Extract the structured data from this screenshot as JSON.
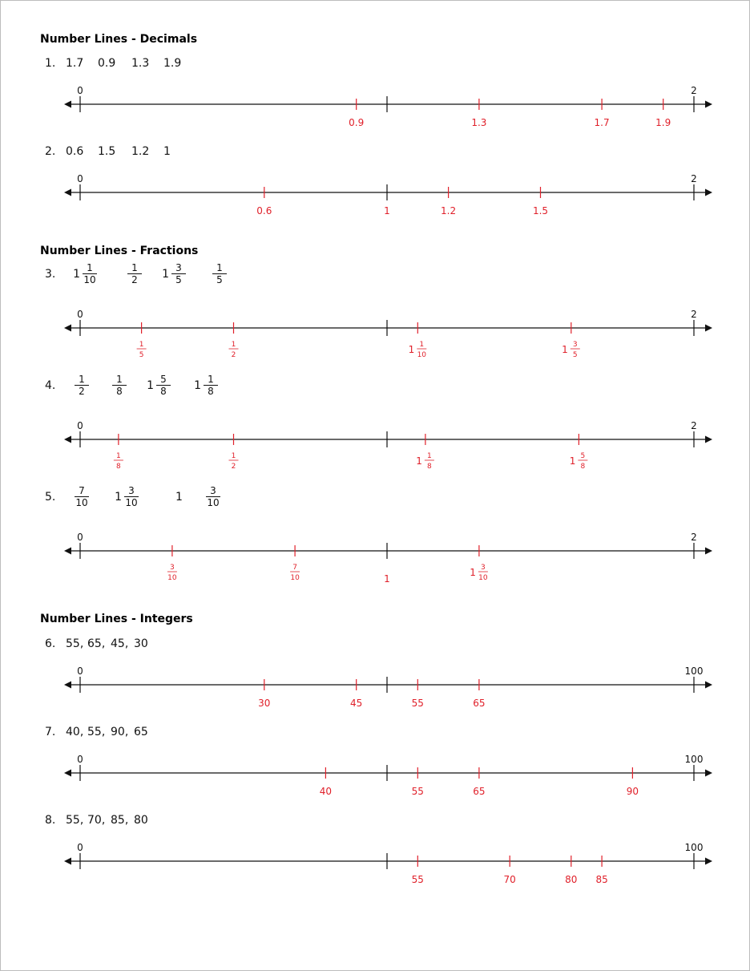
{
  "sections": [
    {
      "title": "Number Lines - Decimals",
      "problems": [
        {
          "num": "1.",
          "items": [
            {
              "text": "1.7"
            },
            {
              "text": "0.9"
            },
            {
              "text": "1.3"
            },
            {
              "text": "1.9"
            }
          ],
          "min": 0,
          "max": 2,
          "min_label": "0",
          "max_label": "2",
          "answers": [
            {
              "value": 0.9,
              "label": "0.9"
            },
            {
              "value": 1.3,
              "label": "1.3"
            },
            {
              "value": 1.7,
              "label": "1.7"
            },
            {
              "value": 1.9,
              "label": "1.9"
            }
          ]
        },
        {
          "num": "2.",
          "items": [
            {
              "text": "0.6"
            },
            {
              "text": "1.5"
            },
            {
              "text": "1.2"
            },
            {
              "text": "1"
            }
          ],
          "min": 0,
          "max": 2,
          "min_label": "0",
          "max_label": "2",
          "answers": [
            {
              "value": 0.6,
              "label": "0.6"
            },
            {
              "value": 1,
              "label": "1"
            },
            {
              "value": 1.2,
              "label": "1.2"
            },
            {
              "value": 1.5,
              "label": "1.5"
            }
          ]
        }
      ]
    },
    {
      "title": "Number Lines - Fractions",
      "problems": [
        {
          "num": "3.",
          "items": [
            {
              "whole": "1",
              "num": "1",
              "den": "10"
            },
            {
              "num": "1",
              "den": "2"
            },
            {
              "whole": "1",
              "num": "3",
              "den": "5"
            },
            {
              "num": "1",
              "den": "5"
            }
          ],
          "min": 0,
          "max": 2,
          "min_label": "0",
          "max_label": "2",
          "answers": [
            {
              "value": 0.2,
              "num": "1",
              "den": "5"
            },
            {
              "value": 0.5,
              "num": "1",
              "den": "2"
            },
            {
              "value": 1.1,
              "whole": "1",
              "num": "1",
              "den": "10"
            },
            {
              "value": 1.6,
              "whole": "1",
              "num": "3",
              "den": "5"
            }
          ]
        },
        {
          "num": "4.",
          "items": [
            {
              "num": "1",
              "den": "2"
            },
            {
              "num": "1",
              "den": "8"
            },
            {
              "whole": "1",
              "num": "5",
              "den": "8"
            },
            {
              "whole": "1",
              "num": "1",
              "den": "8"
            }
          ],
          "min": 0,
          "max": 2,
          "min_label": "0",
          "max_label": "2",
          "answers": [
            {
              "value": 0.125,
              "num": "1",
              "den": "8"
            },
            {
              "value": 0.5,
              "num": "1",
              "den": "2"
            },
            {
              "value": 1.125,
              "whole": "1",
              "num": "1",
              "den": "8"
            },
            {
              "value": 1.625,
              "whole": "1",
              "num": "5",
              "den": "8"
            }
          ]
        },
        {
          "num": "5.",
          "items": [
            {
              "num": "7",
              "den": "10"
            },
            {
              "whole": "1",
              "num": "3",
              "den": "10"
            },
            {
              "text": "1"
            },
            {
              "num": "3",
              "den": "10"
            }
          ],
          "min": 0,
          "max": 2,
          "min_label": "0",
          "max_label": "2",
          "answers": [
            {
              "value": 0.3,
              "num": "3",
              "den": "10"
            },
            {
              "value": 0.7,
              "num": "7",
              "den": "10"
            },
            {
              "value": 1,
              "label": "1"
            },
            {
              "value": 1.3,
              "whole": "1",
              "num": "3",
              "den": "10"
            }
          ]
        }
      ]
    },
    {
      "title": "Number Lines - Integers",
      "problems": [
        {
          "num": "6.",
          "items": [
            {
              "text": "55,"
            },
            {
              "text": "65,"
            },
            {
              "text": "45,"
            },
            {
              "text": "30"
            }
          ],
          "min": 0,
          "max": 100,
          "min_label": "0",
          "max_label": "100",
          "answers": [
            {
              "value": 30,
              "label": "30"
            },
            {
              "value": 45,
              "label": "45"
            },
            {
              "value": 55,
              "label": "55"
            },
            {
              "value": 65,
              "label": "65"
            }
          ]
        },
        {
          "num": "7.",
          "items": [
            {
              "text": "40,"
            },
            {
              "text": "55,"
            },
            {
              "text": "90,"
            },
            {
              "text": "65"
            }
          ],
          "min": 0,
          "max": 100,
          "min_label": "0",
          "max_label": "100",
          "answers": [
            {
              "value": 40,
              "label": "40"
            },
            {
              "value": 55,
              "label": "55"
            },
            {
              "value": 65,
              "label": "65"
            },
            {
              "value": 90,
              "label": "90"
            }
          ]
        },
        {
          "num": "8.",
          "items": [
            {
              "text": "55,"
            },
            {
              "text": "70,"
            },
            {
              "text": "85,"
            },
            {
              "text": "80"
            }
          ],
          "min": 0,
          "max": 100,
          "min_label": "0",
          "max_label": "100",
          "answers": [
            {
              "value": 55,
              "label": "55"
            },
            {
              "value": 70,
              "label": "70"
            },
            {
              "value": 80,
              "label": "80"
            },
            {
              "value": 85,
              "label": "85"
            }
          ]
        }
      ]
    }
  ],
  "colors": {
    "answer": "#e0202a",
    "ink": "#111111"
  }
}
